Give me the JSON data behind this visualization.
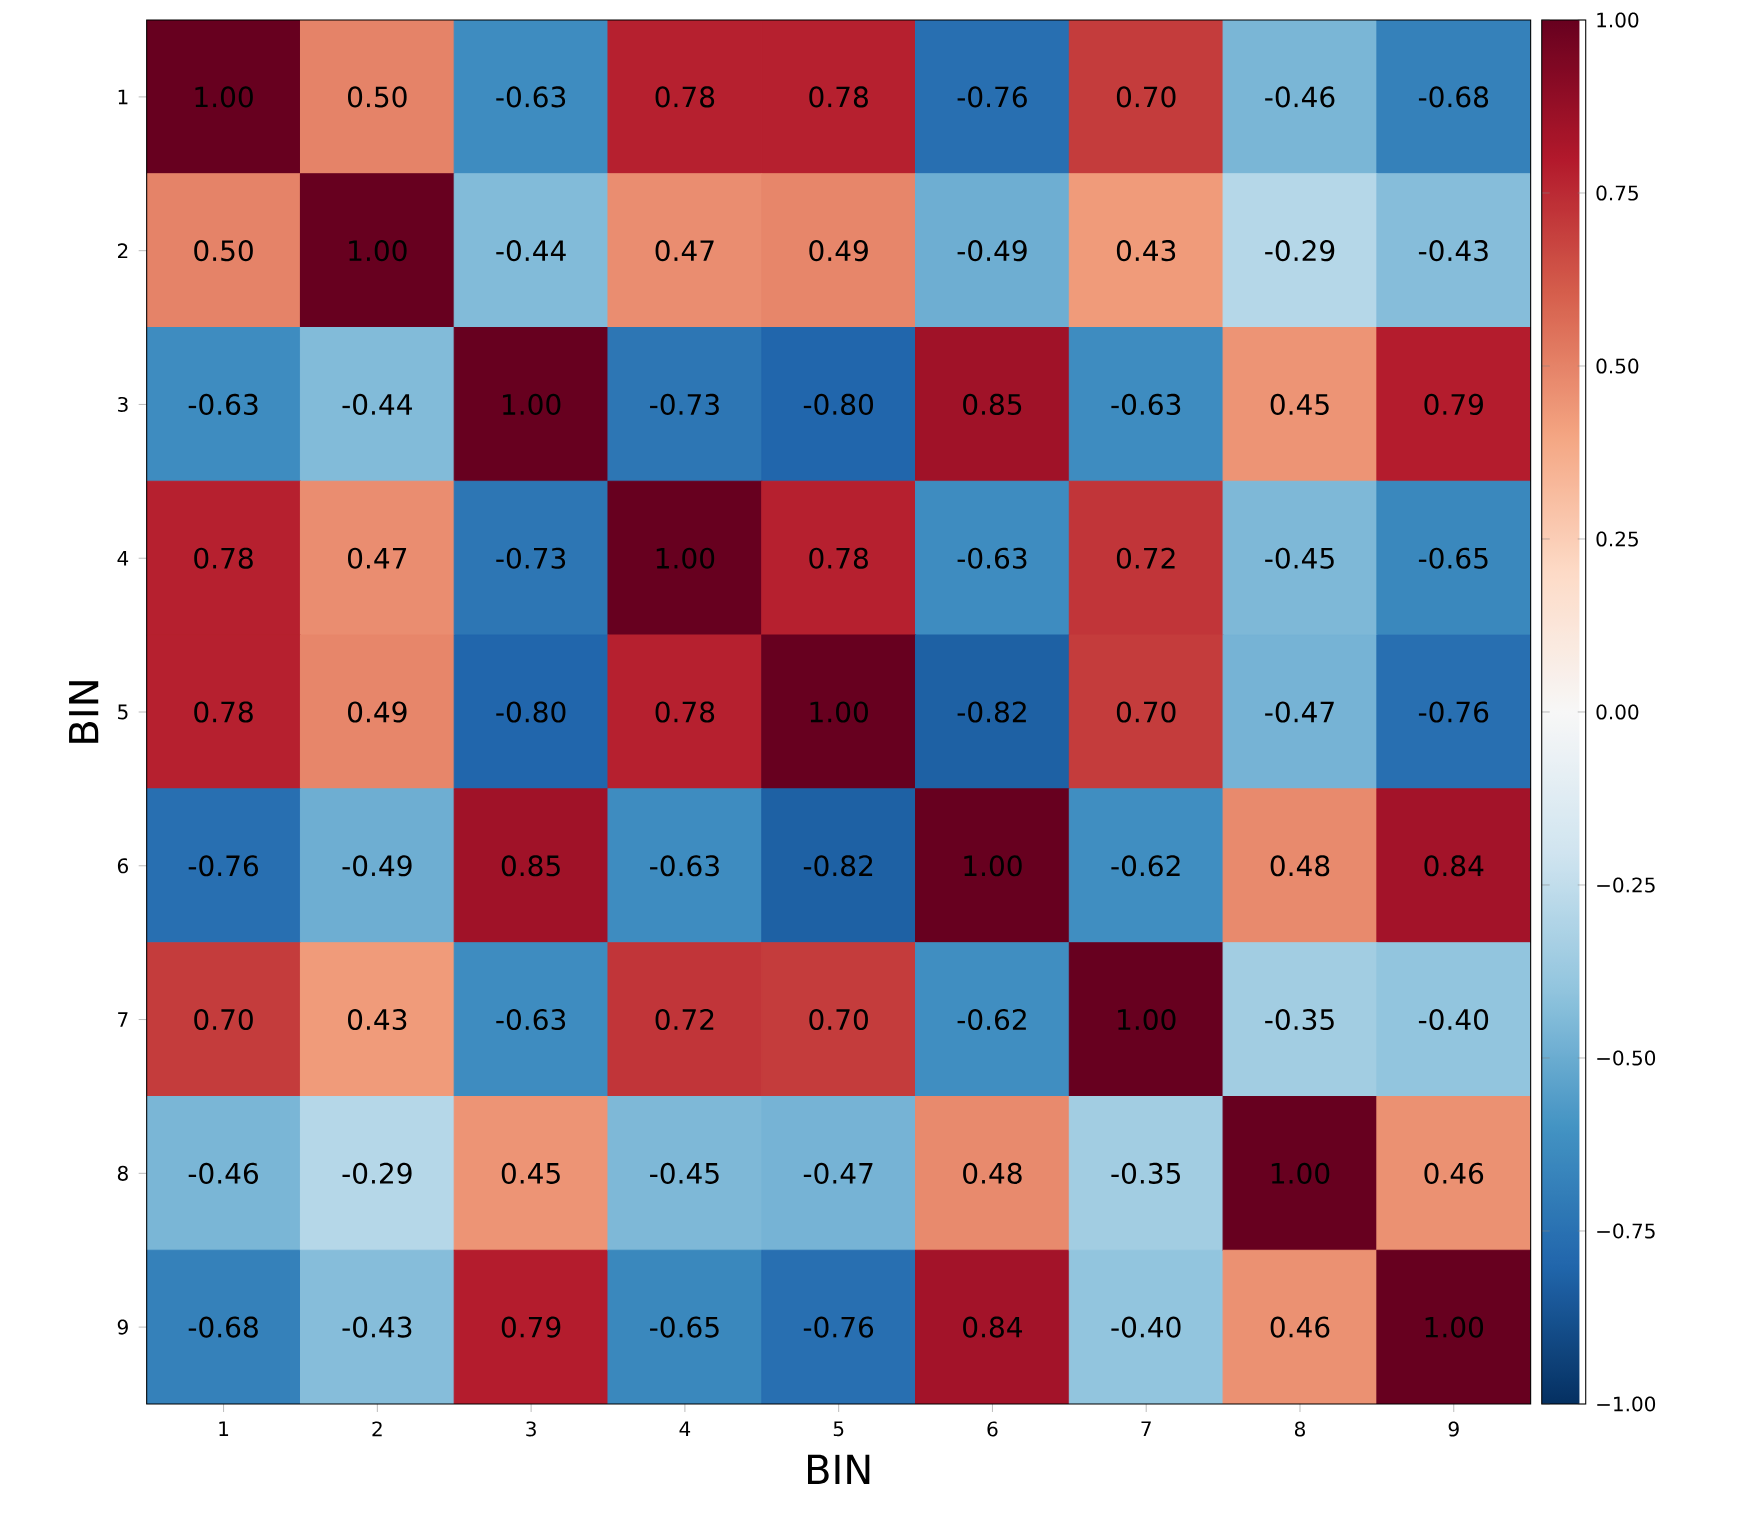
{
  "chart_data": {
    "type": "heatmap",
    "xlabel": "BIN",
    "ylabel": "BIN",
    "categories": [
      "1",
      "2",
      "3",
      "4",
      "5",
      "6",
      "7",
      "8",
      "9"
    ],
    "y_categories": [
      "1",
      "2",
      "3",
      "4",
      "5",
      "6",
      "7",
      "8",
      "9"
    ],
    "cells": [
      [
        1.0,
        0.5,
        -0.63,
        0.78,
        0.78,
        -0.76,
        0.7,
        -0.46,
        -0.68
      ],
      [
        0.5,
        1.0,
        -0.44,
        0.47,
        0.49,
        -0.49,
        0.43,
        -0.29,
        -0.43
      ],
      [
        -0.63,
        -0.44,
        1.0,
        -0.73,
        -0.8,
        0.85,
        -0.63,
        0.45,
        0.79
      ],
      [
        0.78,
        0.47,
        -0.73,
        1.0,
        0.78,
        -0.63,
        0.72,
        -0.45,
        -0.65
      ],
      [
        0.78,
        0.49,
        -0.8,
        0.78,
        1.0,
        -0.82,
        0.7,
        -0.47,
        -0.76
      ],
      [
        -0.76,
        -0.49,
        0.85,
        -0.63,
        -0.82,
        1.0,
        -0.62,
        0.48,
        0.84
      ],
      [
        0.7,
        0.43,
        -0.63,
        0.72,
        0.7,
        -0.62,
        1.0,
        -0.35,
        -0.4
      ],
      [
        -0.46,
        -0.29,
        0.45,
        -0.45,
        -0.47,
        0.48,
        -0.35,
        1.0,
        0.46
      ],
      [
        -0.68,
        -0.43,
        0.79,
        -0.65,
        -0.76,
        0.84,
        -0.4,
        0.46,
        1.0
      ]
    ],
    "cell_labels": [
      [
        "1.00",
        "0.50",
        "-0.63",
        "0.78",
        "0.78",
        "-0.76",
        "0.70",
        "-0.46",
        "-0.68"
      ],
      [
        "0.50",
        "1.00",
        "-0.44",
        "0.47",
        "0.49",
        "-0.49",
        "0.43",
        "-0.29",
        "-0.43"
      ],
      [
        "-0.63",
        "-0.44",
        "1.00",
        "-0.73",
        "-0.80",
        "0.85",
        "-0.63",
        "0.45",
        "0.79"
      ],
      [
        "0.78",
        "0.47",
        "-0.73",
        "1.00",
        "0.78",
        "-0.63",
        "0.72",
        "-0.45",
        "-0.65"
      ],
      [
        "0.78",
        "0.49",
        "-0.80",
        "0.78",
        "1.00",
        "-0.82",
        "0.70",
        "-0.47",
        "-0.76"
      ],
      [
        "-0.76",
        "-0.49",
        "0.85",
        "-0.63",
        "-0.82",
        "1.00",
        "-0.62",
        "0.48",
        "0.84"
      ],
      [
        "0.70",
        "0.43",
        "-0.63",
        "0.72",
        "0.70",
        "-0.62",
        "1.00",
        "-0.35",
        "-0.40"
      ],
      [
        "-0.46",
        "-0.29",
        "0.45",
        "-0.45",
        "-0.47",
        "0.48",
        "-0.35",
        "1.00",
        "0.46"
      ],
      [
        "-0.68",
        "-0.43",
        "0.79",
        "-0.65",
        "-0.76",
        "0.84",
        "-0.40",
        "0.46",
        "1.00"
      ]
    ],
    "clim": [
      -1,
      1
    ],
    "cticks": [
      {
        "value": -1,
        "label": "−1.00"
      },
      {
        "value": -0.75,
        "label": "−0.75"
      },
      {
        "value": -0.5,
        "label": "−0.50"
      },
      {
        "value": -0.25,
        "label": "−0.25"
      },
      {
        "value": 0,
        "label": "0.00"
      },
      {
        "value": 0.25,
        "label": "0.25"
      },
      {
        "value": 0.5,
        "label": "0.50"
      },
      {
        "value": 0.75,
        "label": "0.75"
      },
      {
        "value": 1,
        "label": "1.00"
      }
    ]
  }
}
